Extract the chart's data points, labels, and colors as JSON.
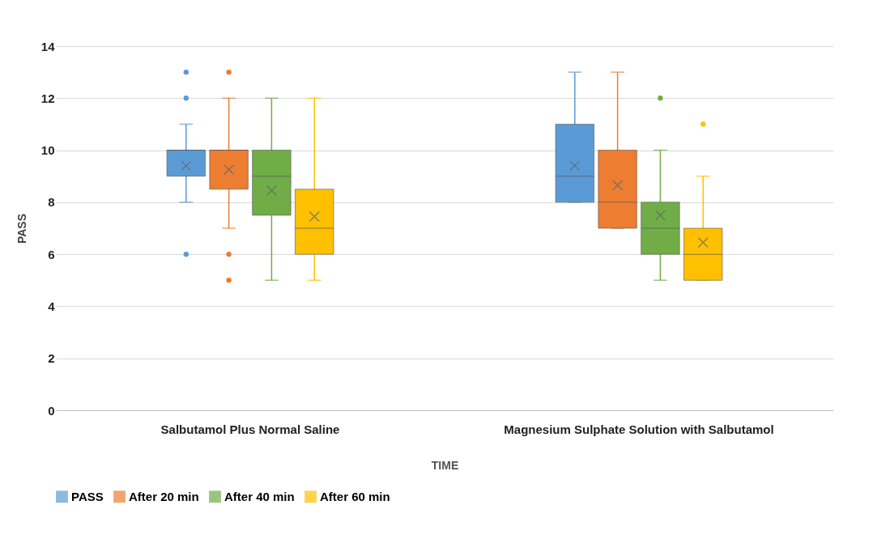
{
  "chart_data": {
    "type": "box",
    "xlabel": "TIME",
    "ylabel": "PASS",
    "categories": [
      "Salbutamol Plus Normal Saline",
      "Magnesium Sulphate Solution with Salbutamol"
    ],
    "ylim": [
      0,
      14
    ],
    "yticks": [
      0,
      2,
      4,
      6,
      8,
      10,
      12,
      14
    ],
    "grid": "y",
    "legend": "bottom",
    "series": [
      {
        "name": "PASS",
        "color": "#5b9bd5",
        "boxes": [
          {
            "low": 8,
            "q1": 9,
            "median": 10,
            "q3": 10,
            "high": 11,
            "mean": 9.4,
            "outliers": [
              13,
              12,
              6
            ]
          },
          {
            "low": 8,
            "q1": 8,
            "median": 9,
            "q3": 11,
            "high": 13,
            "mean": 9.4
          }
        ]
      },
      {
        "name": "After 20 min",
        "color": "#ed7d31",
        "boxes": [
          {
            "low": 7,
            "q1": 8.5,
            "median": 10,
            "q3": 10,
            "high": 12,
            "mean": 9.25,
            "outliers": [
              13,
              6,
              5
            ]
          },
          {
            "low": 7,
            "q1": 7,
            "median": 8,
            "q3": 10,
            "high": 13,
            "mean": 8.65
          }
        ]
      },
      {
        "name": "After 40 min",
        "color": "#70ad47",
        "boxes": [
          {
            "low": 5,
            "q1": 7.5,
            "median": 9,
            "q3": 10,
            "high": 12,
            "mean": 8.45
          },
          {
            "low": 5,
            "q1": 6,
            "median": 7,
            "q3": 8,
            "high": 10,
            "mean": 7.5,
            "outliers": [
              12
            ]
          }
        ]
      },
      {
        "name": "After 60 min",
        "color": "#ffc000",
        "boxes": [
          {
            "low": 5,
            "q1": 6,
            "median": 7,
            "q3": 8.5,
            "high": 12,
            "mean": 7.45
          },
          {
            "low": 5,
            "q1": 5,
            "median": 6,
            "q3": 7,
            "high": 9,
            "mean": 6.45,
            "outliers": [
              11
            ]
          }
        ]
      }
    ]
  }
}
